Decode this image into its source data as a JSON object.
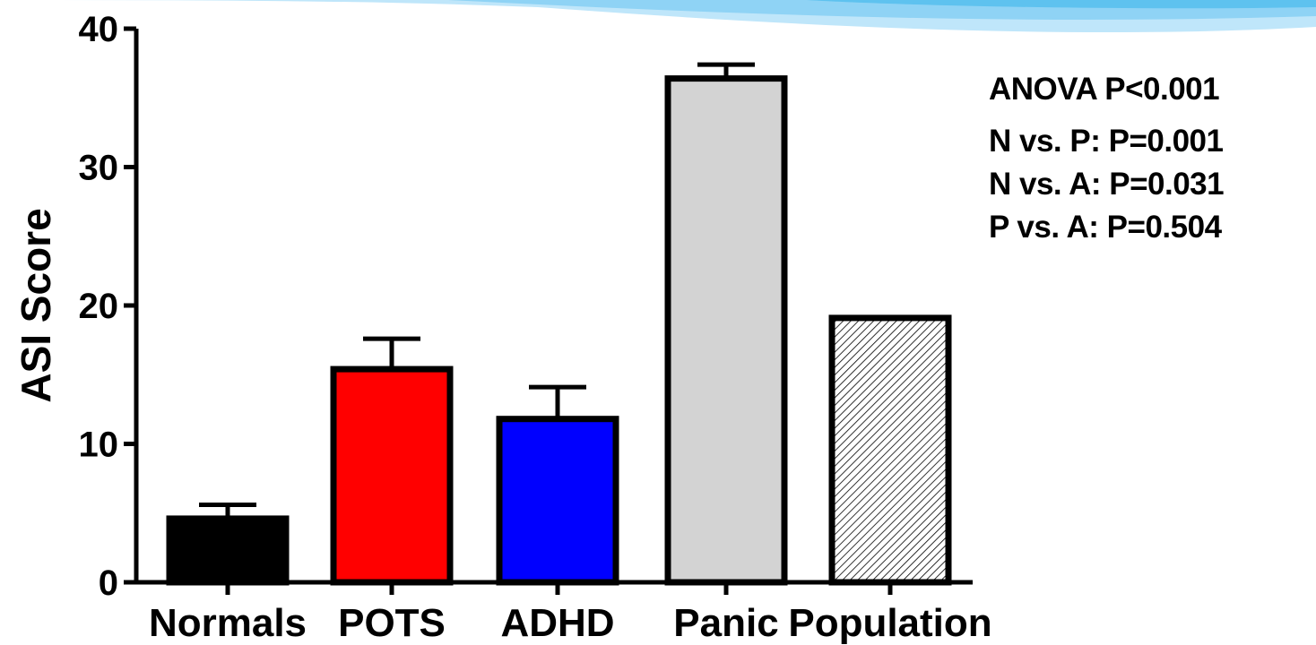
{
  "chart_data": {
    "type": "bar",
    "categories": [
      "Normals",
      "POTS",
      "ADHD",
      "Panic",
      "Population"
    ],
    "values": [
      4.6,
      15.4,
      11.8,
      36.4,
      19.1
    ],
    "error_upper": [
      5.6,
      17.6,
      14.1,
      37.4,
      null
    ],
    "colors": [
      "#000000",
      "#ff0000",
      "#0000ff",
      "#d3d3d3",
      "hatch"
    ],
    "ylabel": "ASI Score",
    "xlabel": "",
    "ylim": [
      0,
      40
    ],
    "yticks": [
      "0",
      "10",
      "20",
      "30",
      "40"
    ],
    "grid": false
  },
  "annotations": [
    "ANOVA P<0.001",
    "N vs. P: P=0.001",
    "N vs. A: P=0.031",
    "P vs. A: P=0.504"
  ],
  "decoration": {
    "header_colors": [
      "#bfe6fa",
      "#8fd3f5",
      "#5ec2ef"
    ]
  }
}
